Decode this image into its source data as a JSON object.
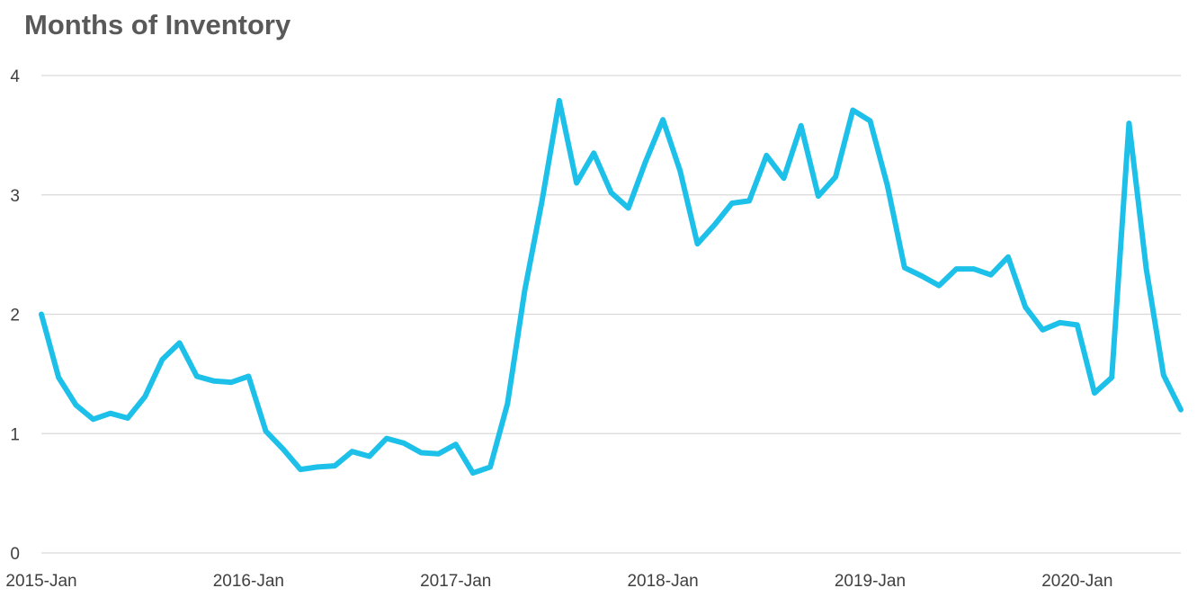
{
  "chart_data": {
    "type": "line",
    "title": "Months of Inventory",
    "xlabel": "",
    "ylabel": "",
    "ylim": [
      0,
      4
    ],
    "yticks": [
      "0",
      "1",
      "2",
      "3",
      "4"
    ],
    "grid": true,
    "legend": "none",
    "x_tick_labels": [
      "2015-Jan",
      "2016-Jan",
      "2017-Jan",
      "2018-Jan",
      "2019-Jan",
      "2020-Jan"
    ],
    "x_tick_positions": [
      0,
      12,
      24,
      36,
      48,
      60
    ],
    "series": [
      {
        "color": "#1cc0e8",
        "values": [
          2.0,
          1.47,
          1.24,
          1.12,
          1.17,
          1.13,
          1.31,
          1.62,
          1.76,
          1.48,
          1.44,
          1.43,
          1.48,
          1.02,
          0.87,
          0.7,
          0.72,
          0.73,
          0.85,
          0.81,
          0.96,
          0.92,
          0.84,
          0.83,
          0.91,
          0.67,
          0.72,
          1.25,
          2.2,
          2.95,
          3.79,
          3.1,
          3.35,
          3.02,
          2.89,
          3.28,
          3.63,
          3.2,
          2.59,
          2.75,
          2.93,
          2.95,
          3.33,
          3.14,
          3.58,
          2.99,
          3.15,
          3.71,
          3.62,
          3.08,
          2.39,
          2.32,
          2.24,
          2.38,
          2.38,
          2.33,
          2.48,
          2.06,
          1.87,
          1.93,
          1.91,
          1.34,
          1.47,
          3.6,
          2.38,
          1.49,
          1.2
        ]
      }
    ]
  }
}
